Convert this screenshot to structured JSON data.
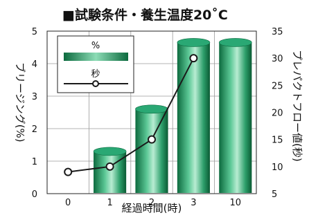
{
  "chart_data": {
    "type": "bar",
    "title": "■試験条件・養生温度20˚C",
    "categories": [
      "0",
      "1",
      "2",
      "3",
      "10"
    ],
    "xlabel": "経過時間(時)",
    "ylabel_left": "ブリージング(%)",
    "ylabel_right": "プレパクトフロー値(秒)",
    "ylim_left": [
      0,
      5
    ],
    "ylim_right": [
      5,
      35
    ],
    "y_ticks_left": [
      "0",
      "1",
      "2",
      "3",
      "4",
      "5"
    ],
    "y_ticks_right": [
      "5",
      "10",
      "15",
      "20",
      "25",
      "30",
      "35"
    ],
    "grid": true,
    "legend_position": "top-left",
    "bar_color": "#1f9a63",
    "line_color": "#1a1a1a",
    "series": [
      {
        "name": "%",
        "kind": "bar",
        "axis": "left",
        "values": [
          0,
          1.3,
          2.6,
          4.65,
          4.65
        ]
      },
      {
        "name": "秒",
        "kind": "line",
        "axis": "right",
        "values": [
          9,
          10,
          15,
          30,
          null
        ]
      }
    ]
  }
}
